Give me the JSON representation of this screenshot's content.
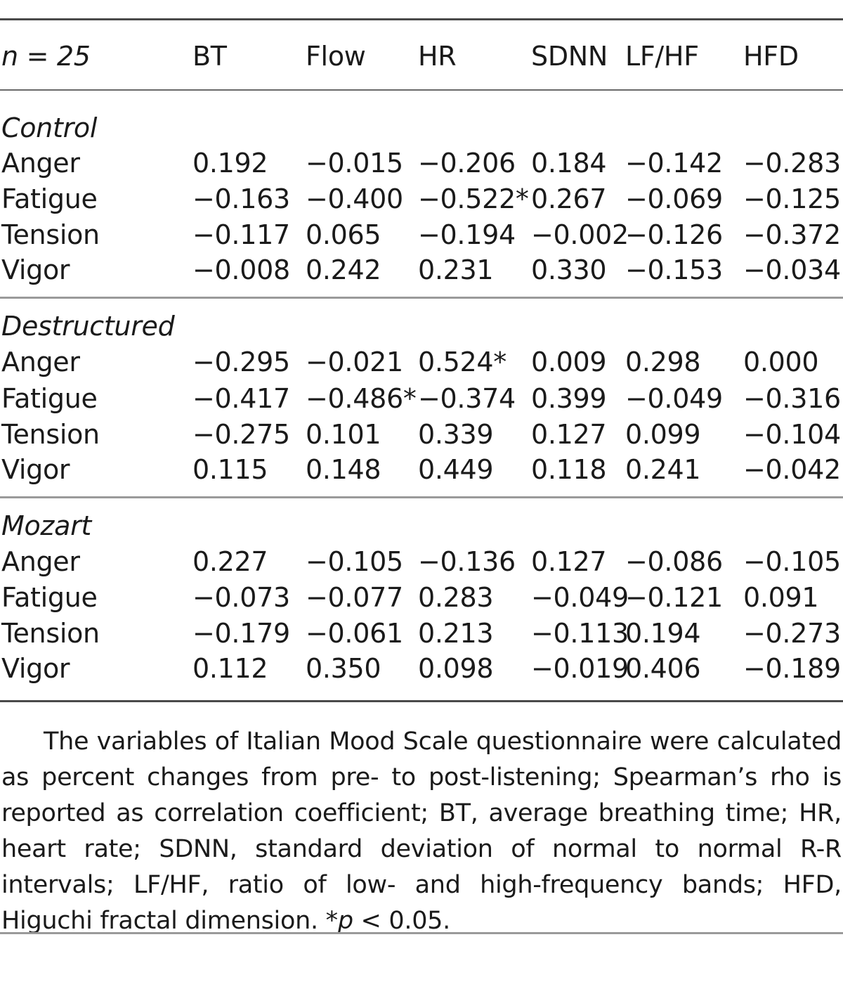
{
  "table": {
    "header": {
      "n_label": "n = 25",
      "columns": [
        "BT",
        "Flow",
        "HR",
        "SDNN",
        "LF/HF",
        "HFD"
      ]
    },
    "groups": [
      {
        "name": "Control",
        "rows": [
          {
            "label": "Anger",
            "values": [
              "0.192",
              "−0.015",
              "−0.206",
              "0.184",
              "−0.142",
              "−0.283"
            ]
          },
          {
            "label": "Fatigue",
            "values": [
              "−0.163",
              "−0.400",
              "−0.522*",
              "0.267",
              "−0.069",
              "−0.125"
            ]
          },
          {
            "label": "Tension",
            "values": [
              "−0.117",
              "0.065",
              "−0.194",
              "−0.002",
              "−0.126",
              "−0.372"
            ]
          },
          {
            "label": "Vigor",
            "values": [
              "−0.008",
              "0.242",
              "0.231",
              "0.330",
              "−0.153",
              "−0.034"
            ]
          }
        ]
      },
      {
        "name": "Destructured",
        "rows": [
          {
            "label": "Anger",
            "values": [
              "−0.295",
              "−0.021",
              "0.524*",
              "0.009",
              "0.298",
              "0.000"
            ]
          },
          {
            "label": "Fatigue",
            "values": [
              "−0.417",
              "−0.486*",
              "−0.374",
              "0.399",
              "−0.049",
              "−0.316"
            ]
          },
          {
            "label": "Tension",
            "values": [
              "−0.275",
              "0.101",
              "0.339",
              "0.127",
              "0.099",
              "−0.104"
            ]
          },
          {
            "label": "Vigor",
            "values": [
              "0.115",
              "0.148",
              "0.449",
              "0.118",
              "0.241",
              "−0.042"
            ]
          }
        ]
      },
      {
        "name": "Mozart",
        "rows": [
          {
            "label": "Anger",
            "values": [
              "0.227",
              "−0.105",
              "−0.136",
              "0.127",
              "−0.086",
              "−0.105"
            ]
          },
          {
            "label": "Fatigue",
            "values": [
              "−0.073",
              "−0.077",
              "0.283",
              "−0.049",
              "−0.121",
              "0.091"
            ]
          },
          {
            "label": "Tension",
            "values": [
              "−0.179",
              "−0.061",
              "0.213",
              "−0.113",
              "0.194",
              "−0.273"
            ]
          },
          {
            "label": "Vigor",
            "values": [
              "0.112",
              "0.350",
              "0.098",
              "−0.019",
              "0.406",
              "−0.189"
            ]
          }
        ]
      }
    ]
  },
  "footnote": {
    "text": "The variables of Italian Mood Scale questionnaire were calculated as percent changes from pre- to post-listening; Spearman’s rho is reported as correlation coefficient; BT, average breathing time; HR, heart rate; SDNN, standard deviation of normal to normal R-R intervals; LF/HF, ratio of low- and high-frequency bands; HFD, Higuchi fractal dimension. *",
    "p_symbol": "p",
    "threshold": " < 0.05."
  }
}
